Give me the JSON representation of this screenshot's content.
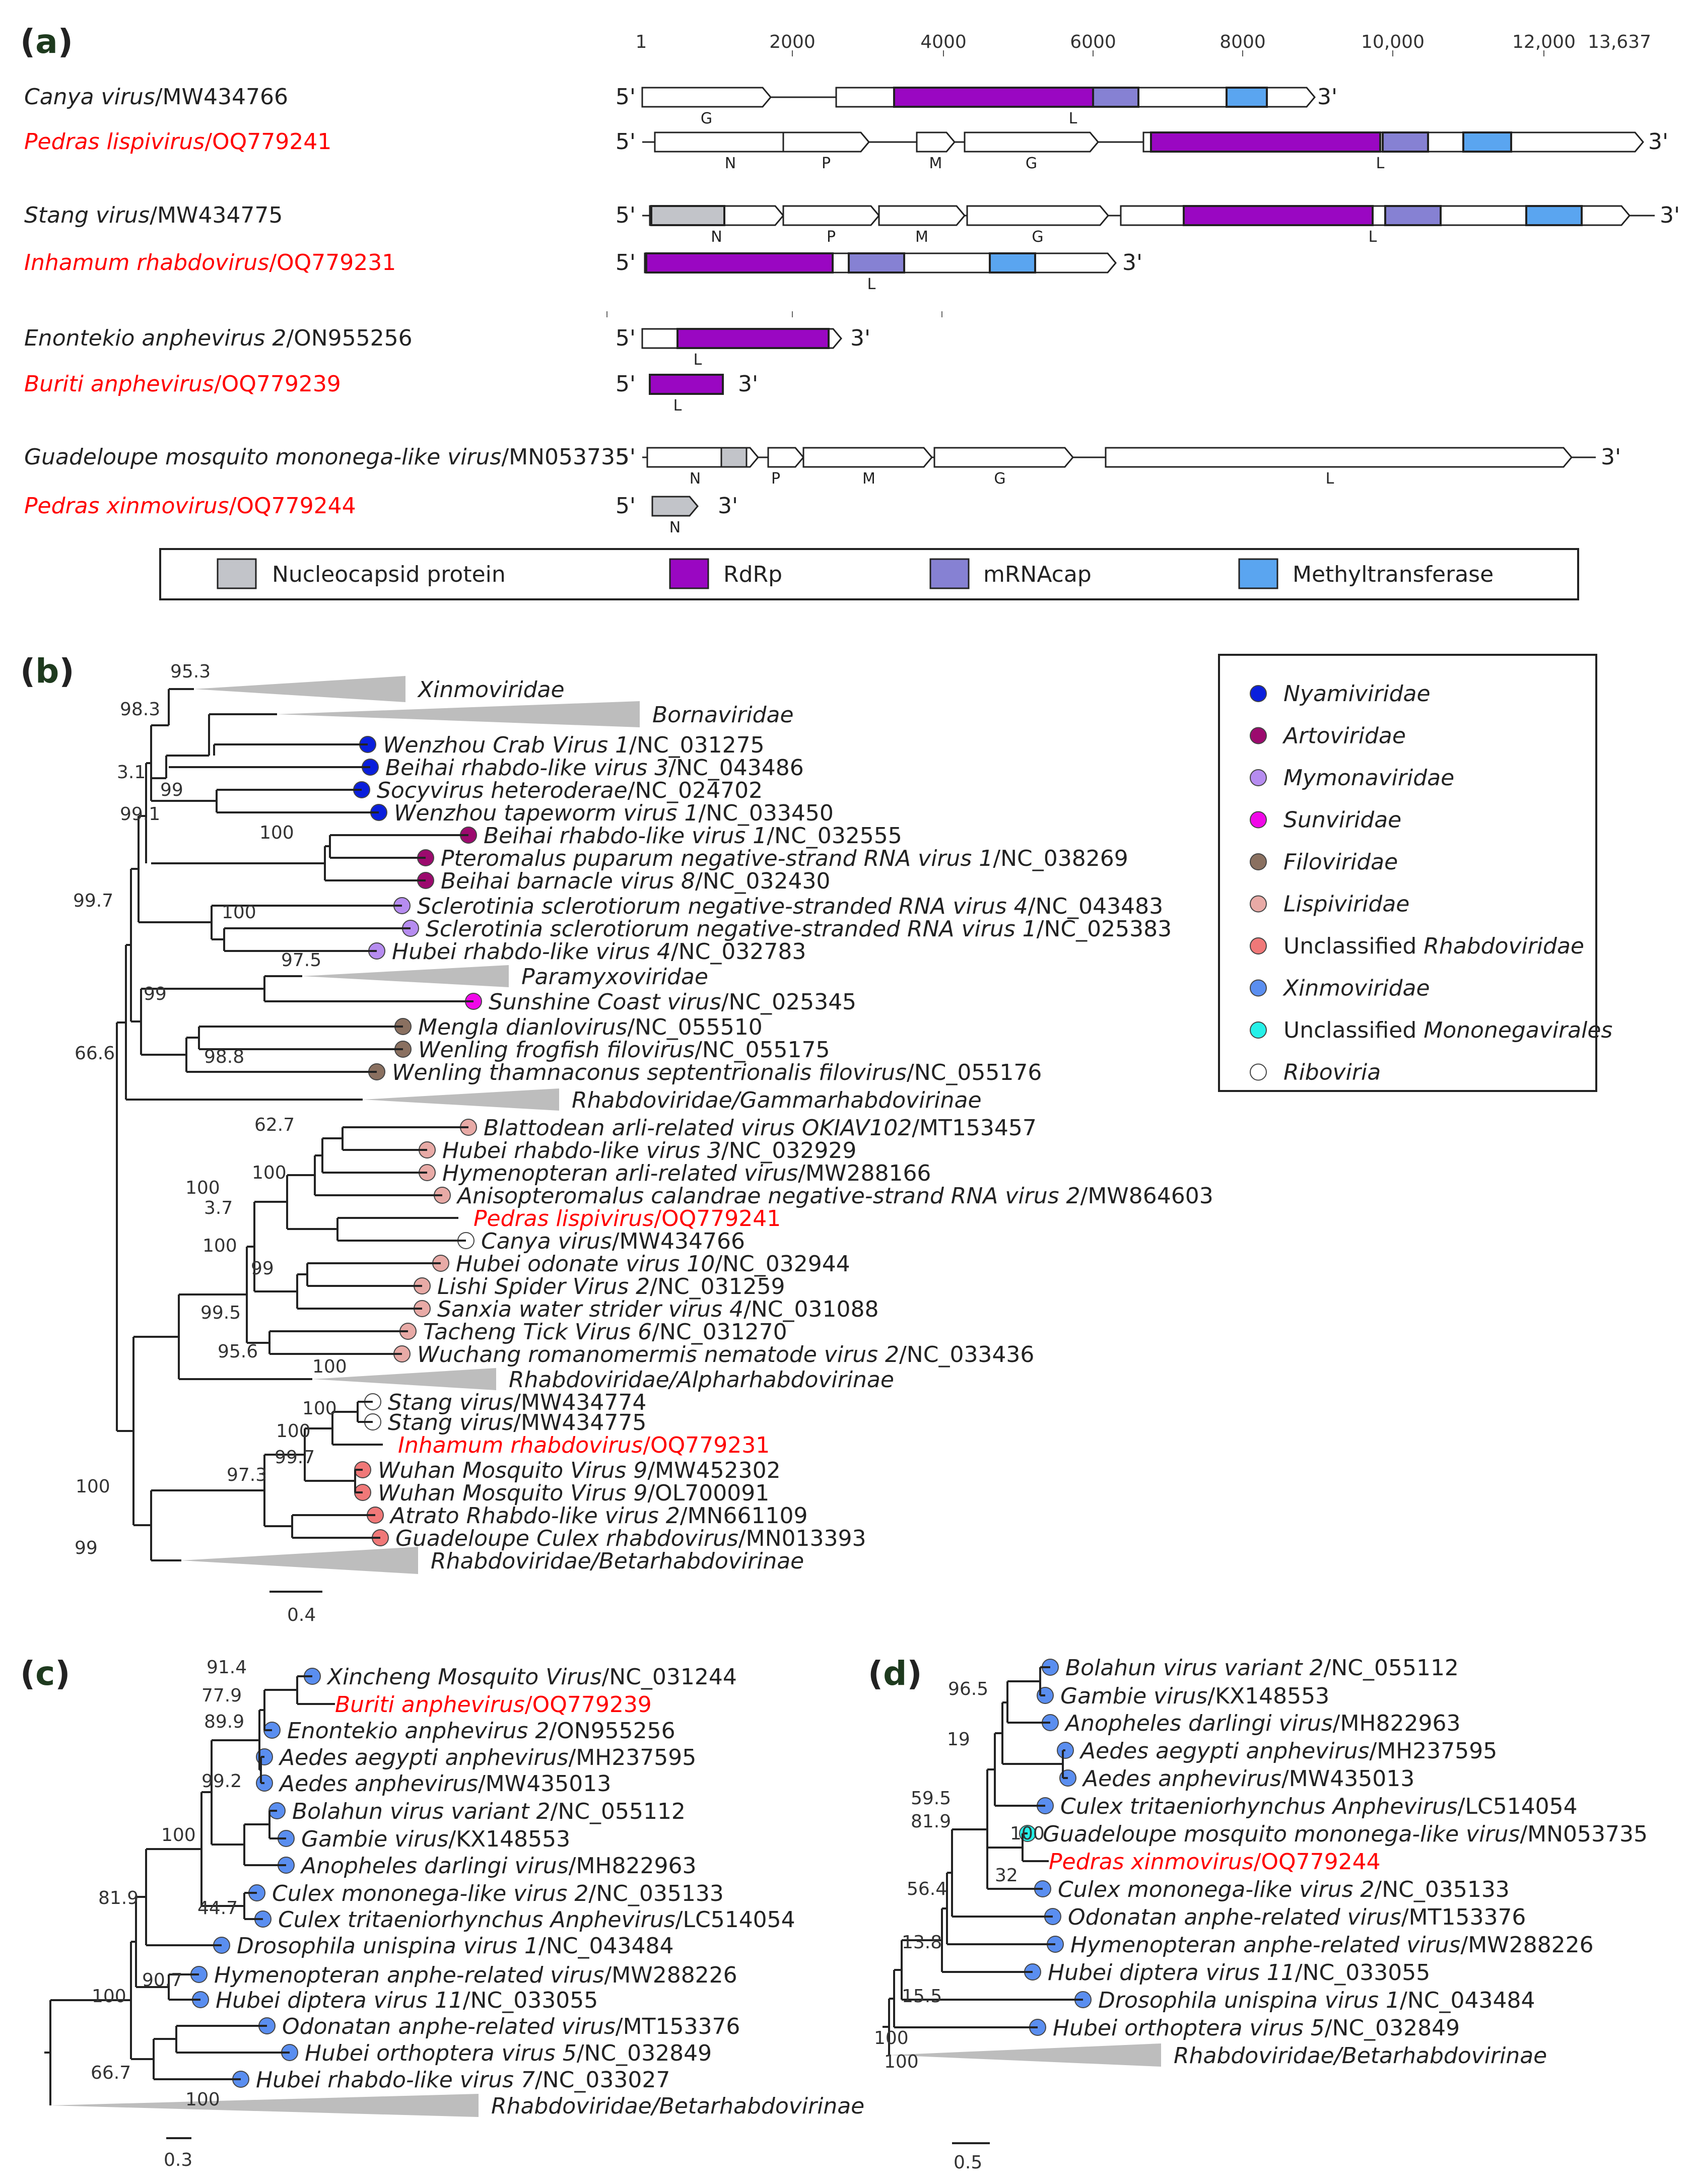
{
  "colors": {
    "red_label": "#ff0000",
    "nucleocapsid": "#c2c4c9",
    "rdrp": "#9a07c2",
    "mrnacap": "#8681d3",
    "methyltransferase": "#5aa5f0",
    "panel_label": "#1e3a1e",
    "collapsed": "#bdbdbd",
    "node_nyami": "#0a1fdc",
    "node_arto": "#9c0a6e",
    "node_mymona": "#b68cf0",
    "node_sun": "#f008e8",
    "node_filo": "#8a7060",
    "node_lispi": "#e8aaa6",
    "node_rhabdo": "#f07878",
    "node_xinmo": "#5a8ef0",
    "node_mono": "#25f0e8",
    "node_ribo": "#ffffff"
  },
  "panel_labels": {
    "a": "(a)",
    "b": "(b)",
    "c": "(c)",
    "d": "(d)"
  },
  "panel_a": {
    "ruler": [
      "1",
      "2000",
      "4000",
      "6000",
      "8000",
      "10,000",
      "12,000",
      "13,637"
    ],
    "end5": "5'",
    "end3": "3'",
    "rows": [
      {
        "name": "Canya virus",
        "acc": "/MW434766",
        "genes": [
          "G",
          "L"
        ]
      },
      {
        "name": "Pedras lispivirus",
        "acc": "/OQ779241",
        "genes": [
          "N",
          "P",
          "M",
          "G",
          "L"
        ]
      },
      {
        "name": "Stang virus",
        "acc": "/MW434775",
        "genes": [
          "N",
          "P",
          "M",
          "G",
          "L"
        ]
      },
      {
        "name": "Inhamum rhabdovirus",
        "acc": "/OQ779231",
        "genes": [
          "L"
        ]
      },
      {
        "name": "Enontekio anphevirus 2",
        "acc": "/ON955256",
        "genes": [
          "L"
        ]
      },
      {
        "name": "Buriti anphevirus",
        "acc": "/OQ779239",
        "genes": [
          "L"
        ]
      },
      {
        "name": "Guadeloupe mosquito mononega-like virus",
        "acc": "/MN053735",
        "genes": [
          "N",
          "P",
          "M",
          "G",
          "L"
        ]
      },
      {
        "name": "Pedras xinmovirus",
        "acc": "/OQ779244",
        "genes": [
          "N"
        ]
      }
    ],
    "legend": [
      "Nucleocapsid protein",
      "RdRp",
      "mRNAcap",
      "Methyltransferase"
    ]
  },
  "panel_b": {
    "legend": [
      {
        "pre": "",
        "ital": "Nyamiviridae",
        "color": "node_nyami"
      },
      {
        "pre": "",
        "ital": "Artoviridae",
        "color": "node_arto"
      },
      {
        "pre": "",
        "ital": "Mymonaviridae",
        "color": "node_mymona"
      },
      {
        "pre": "",
        "ital": "Sunviridae",
        "color": "node_sun"
      },
      {
        "pre": "",
        "ital": "Filoviridae",
        "color": "node_filo"
      },
      {
        "pre": "",
        "ital": "Lispiviridae",
        "color": "node_lispi"
      },
      {
        "pre": "Unclassified ",
        "ital": "Rhabdoviridae",
        "color": "node_rhabdo"
      },
      {
        "pre": "",
        "ital": "Xinmoviridae",
        "color": "node_xinmo"
      },
      {
        "pre": "Unclassified ",
        "ital": "Mononegavirales",
        "color": "node_mono"
      },
      {
        "pre": "",
        "ital": "Riboviria",
        "color": "node_ribo"
      }
    ],
    "taxa": [
      {
        "name": "Xinmoviridae",
        "acc": ""
      },
      {
        "name": "Bornaviridae",
        "acc": ""
      },
      {
        "name": "Wenzhou Crab Virus 1",
        "acc": "/NC_031275"
      },
      {
        "name": "Beihai rhabdo-like virus 3",
        "acc": "/NC_043486"
      },
      {
        "name": "Socyvirus heteroderae",
        "acc": "/NC_024702"
      },
      {
        "name": "Wenzhou tapeworm virus 1",
        "acc": "/NC_033450"
      },
      {
        "name": "Beihai rhabdo-like virus 1",
        "acc": "/NC_032555"
      },
      {
        "name": "Pteromalus puparum negative-strand RNA virus 1",
        "acc": "/NC_038269"
      },
      {
        "name": "Beihai barnacle virus 8",
        "acc": "/NC_032430"
      },
      {
        "name": "Sclerotinia sclerotiorum negative-stranded RNA virus 4",
        "acc": "/NC_043483"
      },
      {
        "name": "Sclerotinia sclerotiorum negative-stranded RNA virus 1",
        "acc": "/NC_025383"
      },
      {
        "name": "Hubei rhabdo-like virus 4",
        "acc": "/NC_032783"
      },
      {
        "name": "Paramyxoviridae",
        "acc": ""
      },
      {
        "name": "Sunshine Coast virus",
        "acc": "/NC_025345"
      },
      {
        "name": "Mengla dianlovirus",
        "acc": "/NC_055510"
      },
      {
        "name": "Wenling frogfish filovirus",
        "acc": "/NC_055175"
      },
      {
        "name": "Wenling thamnaconus septentrionalis filovirus",
        "acc": "/NC_055176"
      },
      {
        "name": "Rhabdoviridae/Gammarhabdovirinae",
        "acc": ""
      },
      {
        "name": "Blattodean arli-related virus OKIAV102",
        "acc": "/MT153457"
      },
      {
        "name": "Hubei rhabdo-like virus 3",
        "acc": "/NC_032929"
      },
      {
        "name": "Hymenopteran arli-related virus",
        "acc": "/MW288166"
      },
      {
        "name": "Anisopteromalus calandrae negative-strand RNA virus 2",
        "acc": "/MW864603"
      },
      {
        "name": "Pedras lispivirus",
        "acc": "/OQ779241"
      },
      {
        "name": "Canya virus",
        "acc": "/MW434766"
      },
      {
        "name": "Hubei odonate virus 10",
        "acc": "/NC_032944"
      },
      {
        "name": "Lishi Spider Virus 2",
        "acc": "/NC_031259"
      },
      {
        "name": "Sanxia water strider virus 4",
        "acc": "/NC_031088"
      },
      {
        "name": "Tacheng Tick Virus 6",
        "acc": "/NC_031270"
      },
      {
        "name": "Wuchang romanomermis nematode virus 2",
        "acc": "/NC_033436"
      },
      {
        "name": "Rhabdoviridae/Alpharhabdovirinae",
        "acc": ""
      },
      {
        "name": "Stang virus",
        "acc": "/MW434774"
      },
      {
        "name": "Stang virus",
        "acc": "/MW434775"
      },
      {
        "name": "Inhamum rhabdovirus",
        "acc": "/OQ779231"
      },
      {
        "name": "Wuhan Mosquito Virus 9",
        "acc": "/MW452302"
      },
      {
        "name": "Wuhan Mosquito Virus 9",
        "acc": "/OL700091"
      },
      {
        "name": "Atrato Rhabdo-like virus 2",
        "acc": "/MN661109"
      },
      {
        "name": "Guadeloupe Culex rhabdovirus",
        "acc": "/MN013393"
      },
      {
        "name": "Rhabdoviridae/Betarhabdovirinae",
        "acc": ""
      }
    ],
    "supports": [
      "95.3",
      "98.3",
      "3.1",
      "99",
      "99.1",
      "100",
      "99.7",
      "100",
      "97.5",
      "99",
      "98.8",
      "66.6",
      "62.7",
      "100",
      "100",
      "3.7",
      "100",
      "99",
      "99.5",
      "95.6",
      "100",
      "100",
      "100",
      "99.7",
      "100",
      "97.3",
      "99"
    ],
    "scale": "0.4"
  },
  "panel_c": {
    "taxa": [
      {
        "name": "Xincheng Mosquito Virus",
        "acc": "/NC_031244"
      },
      {
        "name": "Buriti anphevirus",
        "acc": "/OQ779239"
      },
      {
        "name": "Enontekio anphevirus 2",
        "acc": "/ON955256"
      },
      {
        "name": "Aedes aegypti anphevirus",
        "acc": "/MH237595"
      },
      {
        "name": "Aedes anphevirus",
        "acc": "/MW435013"
      },
      {
        "name": "Bolahun virus variant 2",
        "acc": "/NC_055112"
      },
      {
        "name": "Gambie virus",
        "acc": "/KX148553"
      },
      {
        "name": "Anopheles darlingi virus",
        "acc": "/MH822963"
      },
      {
        "name": "Culex mononega-like virus 2",
        "acc": "/NC_035133"
      },
      {
        "name": "Culex tritaeniorhynchus Anphevirus",
        "acc": "/LC514054"
      },
      {
        "name": "Drosophila unispina virus 1",
        "acc": "/NC_043484"
      },
      {
        "name": "Hymenopteran anphe-related virus",
        "acc": "/MW288226"
      },
      {
        "name": "Hubei diptera virus 11",
        "acc": "/NC_033055"
      },
      {
        "name": "Odonatan anphe-related virus",
        "acc": "/MT153376"
      },
      {
        "name": "Hubei orthoptera virus 5",
        "acc": "/NC_032849"
      },
      {
        "name": "Hubei rhabdo-like virus 7",
        "acc": "/NC_033027"
      },
      {
        "name": "Rhabdoviridae/Betarhabdovirinae",
        "acc": ""
      }
    ],
    "supports": [
      "91.4",
      "77.9",
      "89.9",
      "99.2",
      "100",
      "44.7",
      "81.9",
      "90.7",
      "100",
      "66.7",
      "100"
    ],
    "scale": "0.3"
  },
  "panel_d": {
    "taxa": [
      {
        "name": "Bolahun virus variant 2",
        "acc": "/NC_055112"
      },
      {
        "name": "Gambie virus",
        "acc": "/KX148553"
      },
      {
        "name": "Anopheles darlingi virus",
        "acc": "/MH822963"
      },
      {
        "name": "Aedes aegypti anphevirus",
        "acc": "/MH237595"
      },
      {
        "name": "Aedes anphevirus",
        "acc": "/MW435013"
      },
      {
        "name": "Culex tritaeniorhynchus Anphevirus",
        "acc": "/LC514054"
      },
      {
        "name": "Guadeloupe mosquito mononega-like virus",
        "acc": "/MN053735"
      },
      {
        "name": "Pedras xinmovirus",
        "acc": "/OQ779244"
      },
      {
        "name": "Culex mononega-like virus 2",
        "acc": "/NC_035133"
      },
      {
        "name": "Odonatan anphe-related virus",
        "acc": "/MT153376"
      },
      {
        "name": "Hymenopteran anphe-related virus",
        "acc": "/MW288226"
      },
      {
        "name": "Hubei diptera virus 11",
        "acc": "/NC_033055"
      },
      {
        "name": "Drosophila unispina virus 1",
        "acc": "/NC_043484"
      },
      {
        "name": "Hubei orthoptera virus 5",
        "acc": "/NC_032849"
      },
      {
        "name": "Rhabdoviridae/Betarhabdovirinae",
        "acc": ""
      }
    ],
    "supports": [
      "96.5",
      "19",
      "59.5",
      "81.9",
      "100",
      "32",
      "56.4",
      "13.8",
      "15.5",
      "100",
      "100"
    ],
    "scale": "0.5"
  }
}
